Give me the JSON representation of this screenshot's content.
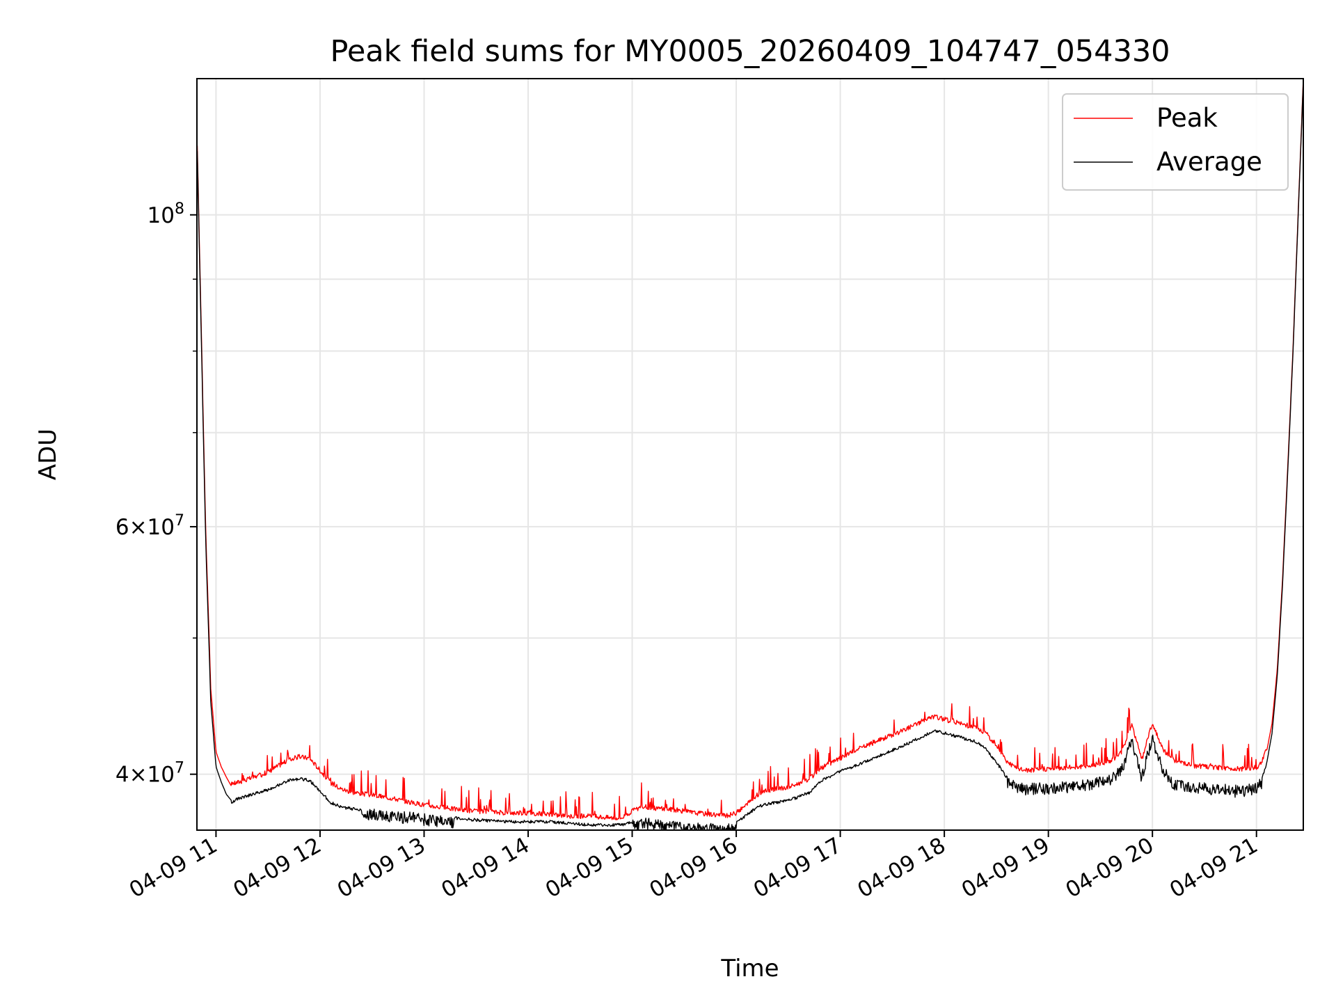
{
  "chart_data": {
    "type": "line",
    "title": "Peak field sums for MY0005_20260409_104747_054330",
    "xlabel": "Time",
    "ylabel": "ADU",
    "yscale": "log",
    "xlim": [
      "04-09 10:49",
      "04-09 21:27"
    ],
    "ylim": [
      36500000,
      125000000
    ],
    "x_tick_labels": [
      "04-09 11",
      "04-09 12",
      "04-09 13",
      "04-09 14",
      "04-09 15",
      "04-09 16",
      "04-09 17",
      "04-09 18",
      "04-09 19",
      "04-09 20",
      "04-09 21"
    ],
    "x_tick_hours": [
      11,
      12,
      13,
      14,
      15,
      16,
      17,
      18,
      19,
      20,
      21
    ],
    "y_major_ticks": [
      {
        "value": 40000000,
        "mantissa": "4",
        "exponent": "7"
      },
      {
        "value": 60000000,
        "mantissa": "6",
        "exponent": "7"
      },
      {
        "value": 100000000,
        "mantissa": "",
        "exponent": "8"
      }
    ],
    "y_grid_values": [
      40000000,
      50000000,
      60000000,
      70000000,
      80000000,
      90000000,
      100000000
    ],
    "grid": true,
    "legend": {
      "placement": "top-right"
    },
    "series": [
      {
        "name": "Peak",
        "color": "#ff0000",
        "x_hours": [
          10.82,
          10.9,
          10.95,
          11.0,
          11.05,
          11.1,
          11.15,
          11.2,
          11.3,
          11.4,
          11.5,
          11.6,
          11.7,
          11.8,
          11.9,
          12.0,
          12.1,
          12.2,
          12.3,
          12.5,
          12.7,
          12.9,
          13.0,
          13.2,
          13.5,
          13.8,
          14.0,
          14.2,
          14.4,
          14.6,
          14.8,
          14.9,
          15.0,
          15.1,
          15.2,
          15.4,
          15.6,
          15.8,
          15.9,
          16.0,
          16.1,
          16.2,
          16.3,
          16.5,
          16.7,
          16.8,
          17.0,
          17.2,
          17.4,
          17.6,
          17.8,
          17.9,
          18.0,
          18.1,
          18.2,
          18.3,
          18.4,
          18.5,
          18.6,
          18.7,
          18.8,
          19.0,
          19.2,
          19.4,
          19.6,
          19.7,
          19.75,
          19.8,
          19.85,
          19.9,
          19.95,
          20.0,
          20.1,
          20.2,
          20.4,
          20.6,
          20.8,
          20.9,
          21.0,
          21.05,
          21.1,
          21.15,
          21.2,
          21.25,
          21.3,
          21.35,
          21.4,
          21.45
        ],
        "values": [
          112000000,
          60000000,
          46000000,
          41500000,
          40500000,
          39800000,
          39200000,
          39300000,
          39500000,
          39700000,
          40000000,
          40400000,
          40800000,
          41000000,
          40900000,
          40100000,
          39300000,
          38900000,
          38700000,
          38500000,
          38300000,
          38000000,
          37900000,
          37700000,
          37500000,
          37400000,
          37400000,
          37300000,
          37200000,
          37200000,
          37100000,
          37100000,
          37500000,
          37800000,
          37700000,
          37600000,
          37400000,
          37300000,
          37200000,
          37400000,
          37900000,
          38500000,
          38800000,
          39000000,
          39500000,
          40200000,
          40900000,
          41600000,
          42200000,
          42800000,
          43500000,
          43800000,
          43600000,
          43400000,
          43200000,
          43000000,
          42600000,
          41800000,
          40700000,
          40200000,
          40100000,
          40200000,
          40300000,
          40400000,
          40700000,
          41300000,
          42200000,
          43300000,
          42000000,
          40800000,
          42200000,
          43300000,
          41500000,
          40700000,
          40400000,
          40300000,
          40200000,
          40200000,
          40300000,
          40600000,
          41600000,
          43500000,
          47500000,
          55000000,
          66000000,
          80000000,
          100000000,
          125000000
        ]
      },
      {
        "name": "Average",
        "color": "#000000",
        "x_hours": [
          10.82,
          10.9,
          10.95,
          11.0,
          11.05,
          11.1,
          11.15,
          11.2,
          11.3,
          11.4,
          11.5,
          11.6,
          11.7,
          11.8,
          11.9,
          12.0,
          12.1,
          12.2,
          12.3,
          12.5,
          12.7,
          12.9,
          13.0,
          13.2,
          13.5,
          13.8,
          14.0,
          14.2,
          14.4,
          14.6,
          14.8,
          14.9,
          15.0,
          15.1,
          15.2,
          15.4,
          15.6,
          15.8,
          15.9,
          16.0,
          16.1,
          16.2,
          16.3,
          16.5,
          16.7,
          16.8,
          17.0,
          17.2,
          17.4,
          17.6,
          17.8,
          17.9,
          18.0,
          18.1,
          18.2,
          18.3,
          18.4,
          18.5,
          18.6,
          18.7,
          18.8,
          19.0,
          19.2,
          19.4,
          19.6,
          19.7,
          19.75,
          19.8,
          19.85,
          19.9,
          19.95,
          20.0,
          20.1,
          20.2,
          20.4,
          20.6,
          20.8,
          20.9,
          21.0,
          21.05,
          21.1,
          21.15,
          21.2,
          21.25,
          21.3,
          21.35,
          21.4,
          21.45
        ],
        "values": [
          111000000,
          59000000,
          45000000,
          40500000,
          39500000,
          38700000,
          38300000,
          38500000,
          38700000,
          38900000,
          39100000,
          39400000,
          39700000,
          39800000,
          39700000,
          39000000,
          38300000,
          38000000,
          37900000,
          37800000,
          37700000,
          37600000,
          37500000,
          37400000,
          37200000,
          37100000,
          37100000,
          37100000,
          37000000,
          36900000,
          36900000,
          36900000,
          37100000,
          37300000,
          37200000,
          37100000,
          37000000,
          36900000,
          36900000,
          37100000,
          37500000,
          38000000,
          38200000,
          38400000,
          38900000,
          39600000,
          40300000,
          40800000,
          41400000,
          42000000,
          42700000,
          43100000,
          42900000,
          42700000,
          42500000,
          42300000,
          41800000,
          40900000,
          39900000,
          39500000,
          39400000,
          39500000,
          39600000,
          39700000,
          40000000,
          40600000,
          41500000,
          42800000,
          41300000,
          40100000,
          41600000,
          42800000,
          40700000,
          39800000,
          39500000,
          39400000,
          39300000,
          39300000,
          39500000,
          39800000,
          40800000,
          42800000,
          47000000,
          54500000,
          65500000,
          79500000,
          99500000,
          124500000
        ]
      }
    ]
  }
}
